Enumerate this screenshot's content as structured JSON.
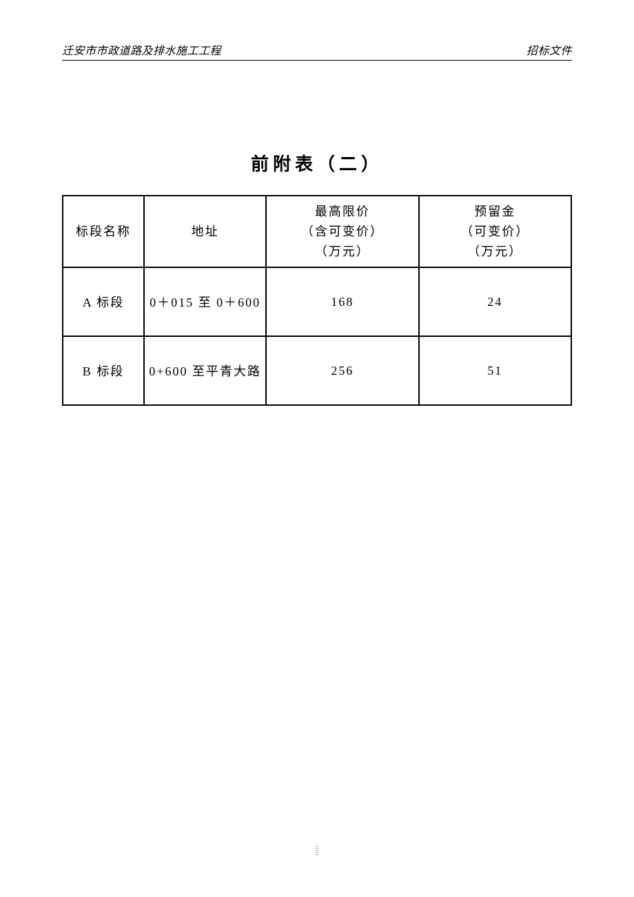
{
  "header": {
    "left": "迁安市市政道路及排水施工工程",
    "right": "招标文件"
  },
  "title": "前附表（二）",
  "table": {
    "columns": [
      {
        "label": "标段名称",
        "width": "16%"
      },
      {
        "label": "地址",
        "width": "24%"
      },
      {
        "label_line1": "最高限价",
        "label_line2": "（含可变价）",
        "label_line3": "（万元）",
        "width": "30%"
      },
      {
        "label_line1": "预留金",
        "label_line2": "（可变价）",
        "label_line3": "（万元）",
        "width": "30%"
      }
    ],
    "rows": [
      {
        "section_name": "A 标段",
        "address": "0＋015 至 0＋600",
        "max_price": "168",
        "reserve": "24"
      },
      {
        "section_name": "B 标段",
        "address": "0+600 至平青大路",
        "max_price": "256",
        "reserve": "51"
      }
    ],
    "border_color": "#000000",
    "text_color": "#000000",
    "background_color": "#ffffff",
    "header_fontsize": 18,
    "cell_fontsize": 18,
    "title_fontsize": 26
  }
}
